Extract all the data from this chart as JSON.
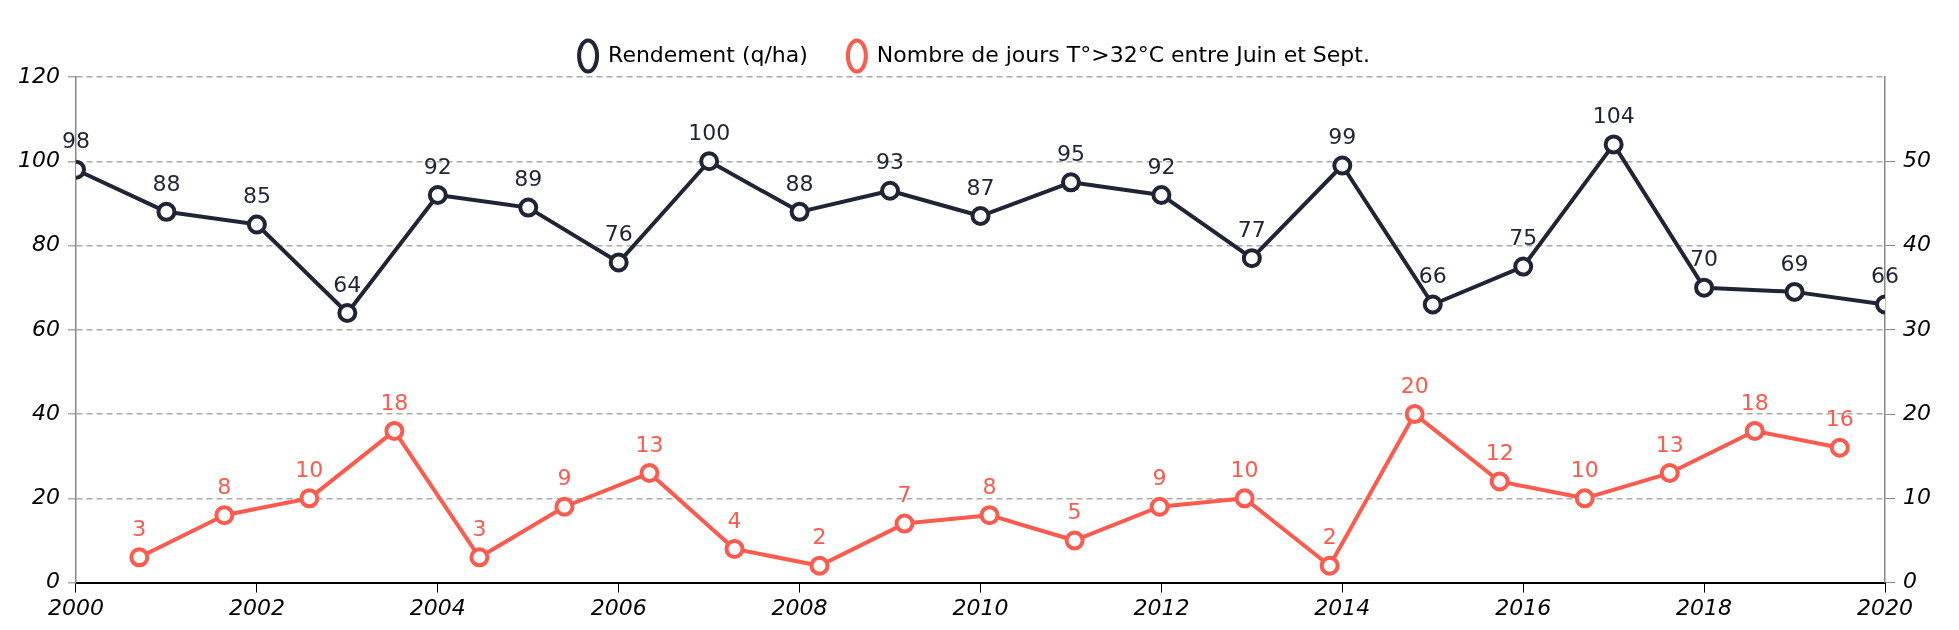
{
  "chart_data": {
    "type": "line",
    "legend": "top",
    "grid": "y",
    "marker": "circle",
    "line_style": "solid",
    "data_labels": true,
    "xlim": [
      2000,
      2020
    ],
    "xticks": [
      2000,
      2002,
      2004,
      2006,
      2008,
      2010,
      2012,
      2014,
      2016,
      2018,
      2020
    ],
    "ylim": [
      0,
      120
    ],
    "yticks": [
      0,
      20,
      40,
      60,
      80,
      100,
      120
    ],
    "y2lim": [
      0,
      60
    ],
    "y2ticks": [
      0,
      10,
      20,
      30,
      40,
      50
    ],
    "series": [
      {
        "name": "Rendement (q/ha)",
        "color": "#1f2535",
        "x": [
          2000,
          2001,
          2002,
          2003,
          2004,
          2005,
          2006,
          2007,
          2008,
          2009,
          2010,
          2011,
          2012,
          2013,
          2014,
          2015,
          2016,
          2017,
          2018,
          2019,
          2020
        ],
        "values": [
          98,
          88,
          85,
          64,
          92,
          89,
          76,
          100,
          88,
          93,
          87,
          95,
          92,
          77,
          99,
          66,
          75,
          104,
          70,
          69,
          66
        ]
      },
      {
        "name": "Nombre de jours T°>32°C entre Juin et Sept.",
        "color": "#ff5a4e",
        "axis": "y2",
        "x": [
          2000.7,
          2001.64,
          2002.58,
          2003.52,
          2004.46,
          2005.4,
          2006.34,
          2007.28,
          2008.22,
          2009.16,
          2010.1,
          2011.04,
          2011.98,
          2012.92,
          2013.86,
          2014.8,
          2015.74,
          2016.68,
          2017.62,
          2018.56,
          2019.5
        ],
        "values": [
          3,
          8,
          10,
          18,
          3,
          9,
          13,
          4,
          2,
          7,
          8,
          5,
          9,
          10,
          2,
          20,
          12,
          10,
          13,
          18,
          16
        ]
      }
    ]
  }
}
